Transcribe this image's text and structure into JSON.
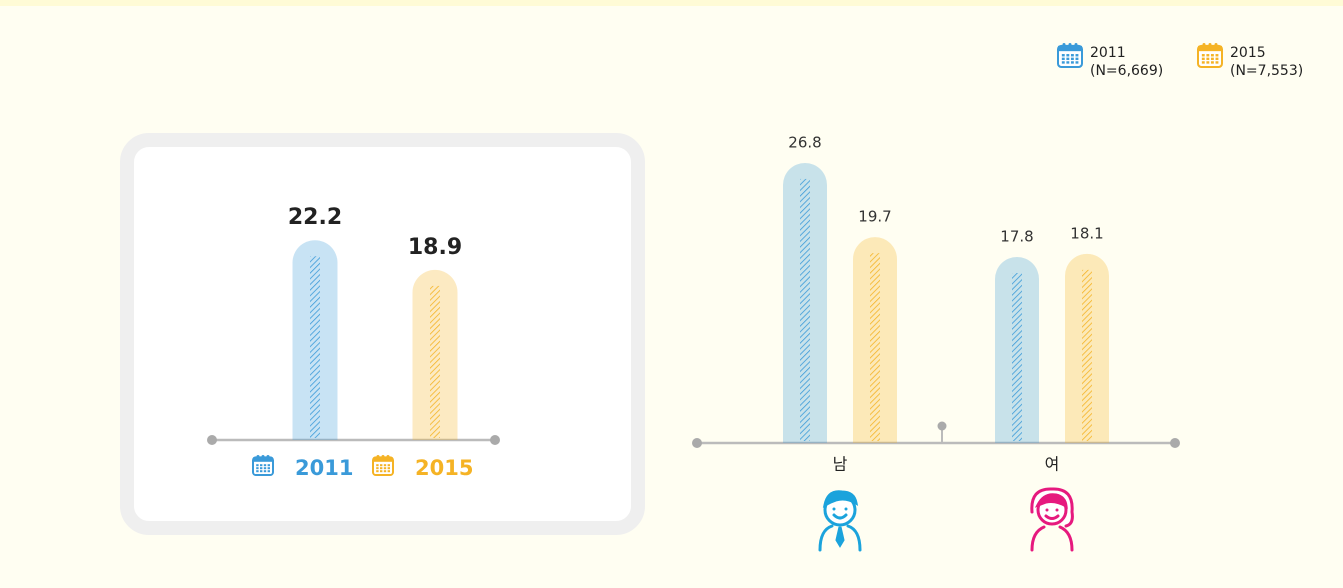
{
  "chart_data": [
    {
      "type": "bar",
      "categories": [
        "2011",
        "2015"
      ],
      "values": [
        22.2,
        18.9
      ],
      "colors": [
        "#3a9ad9",
        "#f5b325"
      ]
    },
    {
      "type": "grouped_bar",
      "categories": [
        "남",
        "여"
      ],
      "series": [
        {
          "name": "2011",
          "note": "(N=6,669)",
          "color": "#3a9ad9",
          "values": [
            26.8,
            17.8
          ]
        },
        {
          "name": "2015",
          "note": "(N=7,553)",
          "color": "#f5b325",
          "values": [
            19.7,
            18.1
          ]
        }
      ]
    }
  ]
}
